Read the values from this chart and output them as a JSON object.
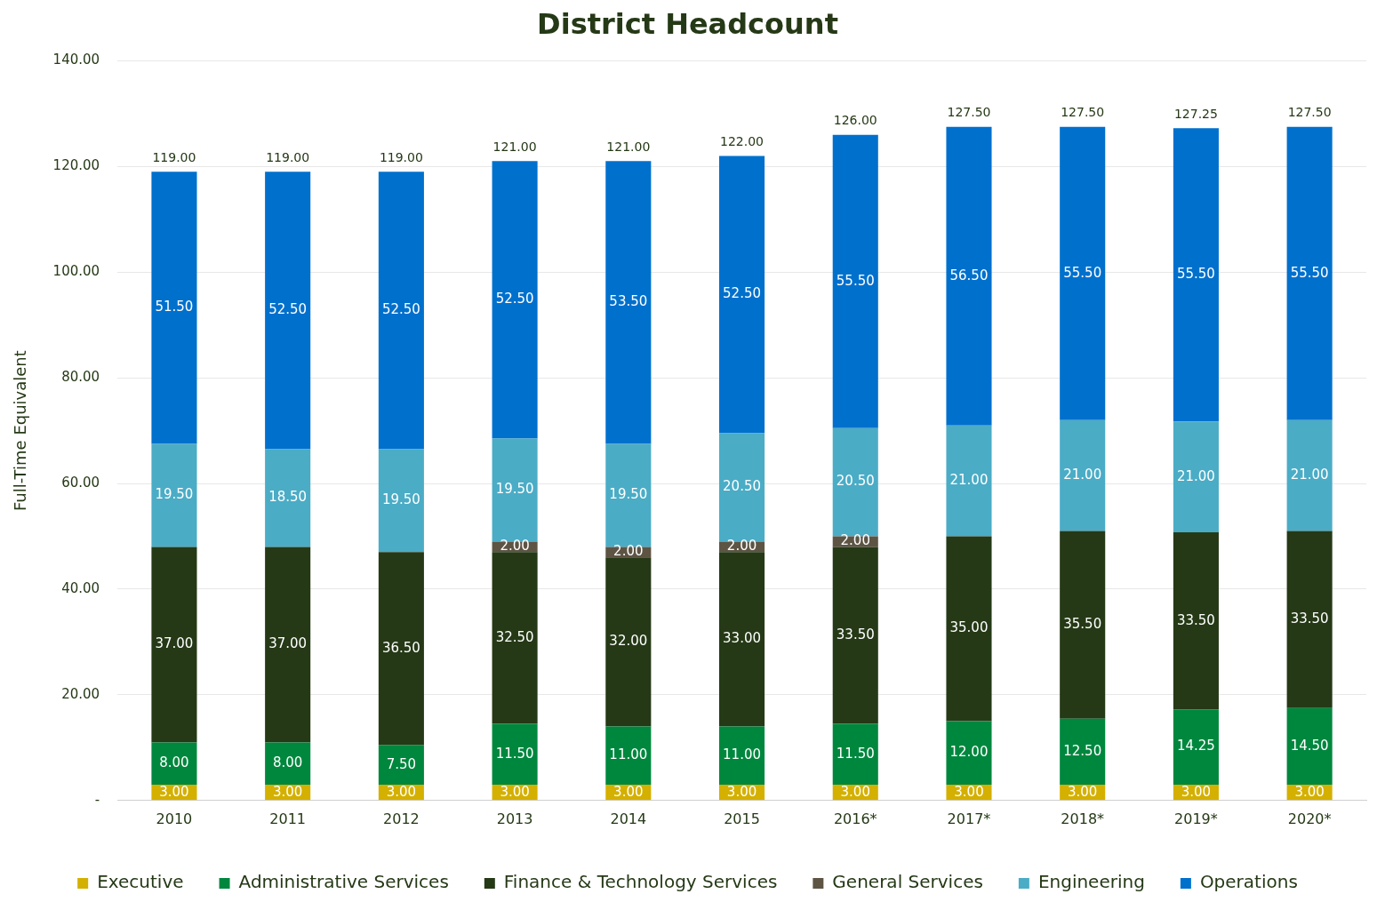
{
  "chart_data": {
    "type": "bar",
    "title": "District Headcount",
    "ylabel": "Full-Time Equivalent",
    "stacked": true,
    "grid": "y",
    "legend": "bottom",
    "categories": [
      "2010",
      "2011",
      "2012",
      "2013",
      "2014",
      "2015",
      "2016*",
      "2017*",
      "2018*",
      "2019*",
      "2020*"
    ],
    "ylim": [
      0,
      140
    ],
    "yticks": [
      {
        "value": 0,
        "label": "-"
      },
      {
        "value": 20,
        "label": "20.00"
      },
      {
        "value": 40,
        "label": "40.00"
      },
      {
        "value": 60,
        "label": "60.00"
      },
      {
        "value": 80,
        "label": "80.00"
      },
      {
        "value": 100,
        "label": "100.00"
      },
      {
        "value": 120,
        "label": "120.00"
      },
      {
        "value": 140,
        "label": "140.00"
      }
    ],
    "series": [
      {
        "name": "Executive",
        "color": "#d4b000",
        "values": [
          3,
          3,
          3,
          3,
          3,
          3,
          3,
          3,
          3,
          3,
          3
        ],
        "value_labels": [
          "3.00",
          "3.00",
          "3.00",
          "3.00",
          "3.00",
          "3.00",
          "3.00",
          "3.00",
          "3.00",
          "3.00",
          "3.00"
        ]
      },
      {
        "name": "Administrative Services",
        "color": "#00873e",
        "values": [
          8,
          8,
          7.5,
          11.5,
          11,
          11,
          11.5,
          12,
          12.5,
          14.25,
          14.5
        ],
        "value_labels": [
          "8.00",
          "8.00",
          "7.50",
          "11.50",
          "11.00",
          "11.00",
          "11.50",
          "12.00",
          "12.50",
          "14.25",
          "14.50"
        ]
      },
      {
        "name": "Finance & Technology Services",
        "color": "#253916",
        "values": [
          37,
          37,
          36.5,
          32.5,
          32,
          33,
          33.5,
          35,
          35.5,
          33.5,
          33.5
        ],
        "value_labels": [
          "37.00",
          "37.00",
          "36.50",
          "32.50",
          "32.00",
          "33.00",
          "33.50",
          "35.00",
          "35.50",
          "33.50",
          "33.50"
        ]
      },
      {
        "name": "General Services",
        "color": "#5e5444",
        "values": [
          null,
          null,
          null,
          2,
          2,
          2,
          2,
          null,
          null,
          null,
          null
        ],
        "value_labels": [
          null,
          null,
          null,
          "2.00",
          "2.00",
          "2.00",
          "2.00",
          null,
          null,
          null,
          null
        ]
      },
      {
        "name": "Engineering",
        "color": "#4bacc6",
        "values": [
          19.5,
          18.5,
          19.5,
          19.5,
          19.5,
          20.5,
          20.5,
          21,
          21,
          21,
          21
        ],
        "value_labels": [
          "19.50",
          "18.50",
          "19.50",
          "19.50",
          "19.50",
          "20.50",
          "20.50",
          "21.00",
          "21.00",
          "21.00",
          "21.00"
        ]
      },
      {
        "name": "Operations",
        "color": "#0070cd",
        "values": [
          51.5,
          52.5,
          52.5,
          52.5,
          53.5,
          52.5,
          55.5,
          56.5,
          55.5,
          55.5,
          55.5
        ],
        "value_labels": [
          "51.50",
          "52.50",
          "52.50",
          "52.50",
          "53.50",
          "52.50",
          "55.50",
          "56.50",
          "55.50",
          "55.50",
          "55.50"
        ]
      }
    ],
    "totals": [
      "119.00",
      "119.00",
      "119.00",
      "121.00",
      "121.00",
      "122.00",
      "126.00",
      "127.50",
      "127.50",
      "127.25",
      "127.50"
    ]
  }
}
